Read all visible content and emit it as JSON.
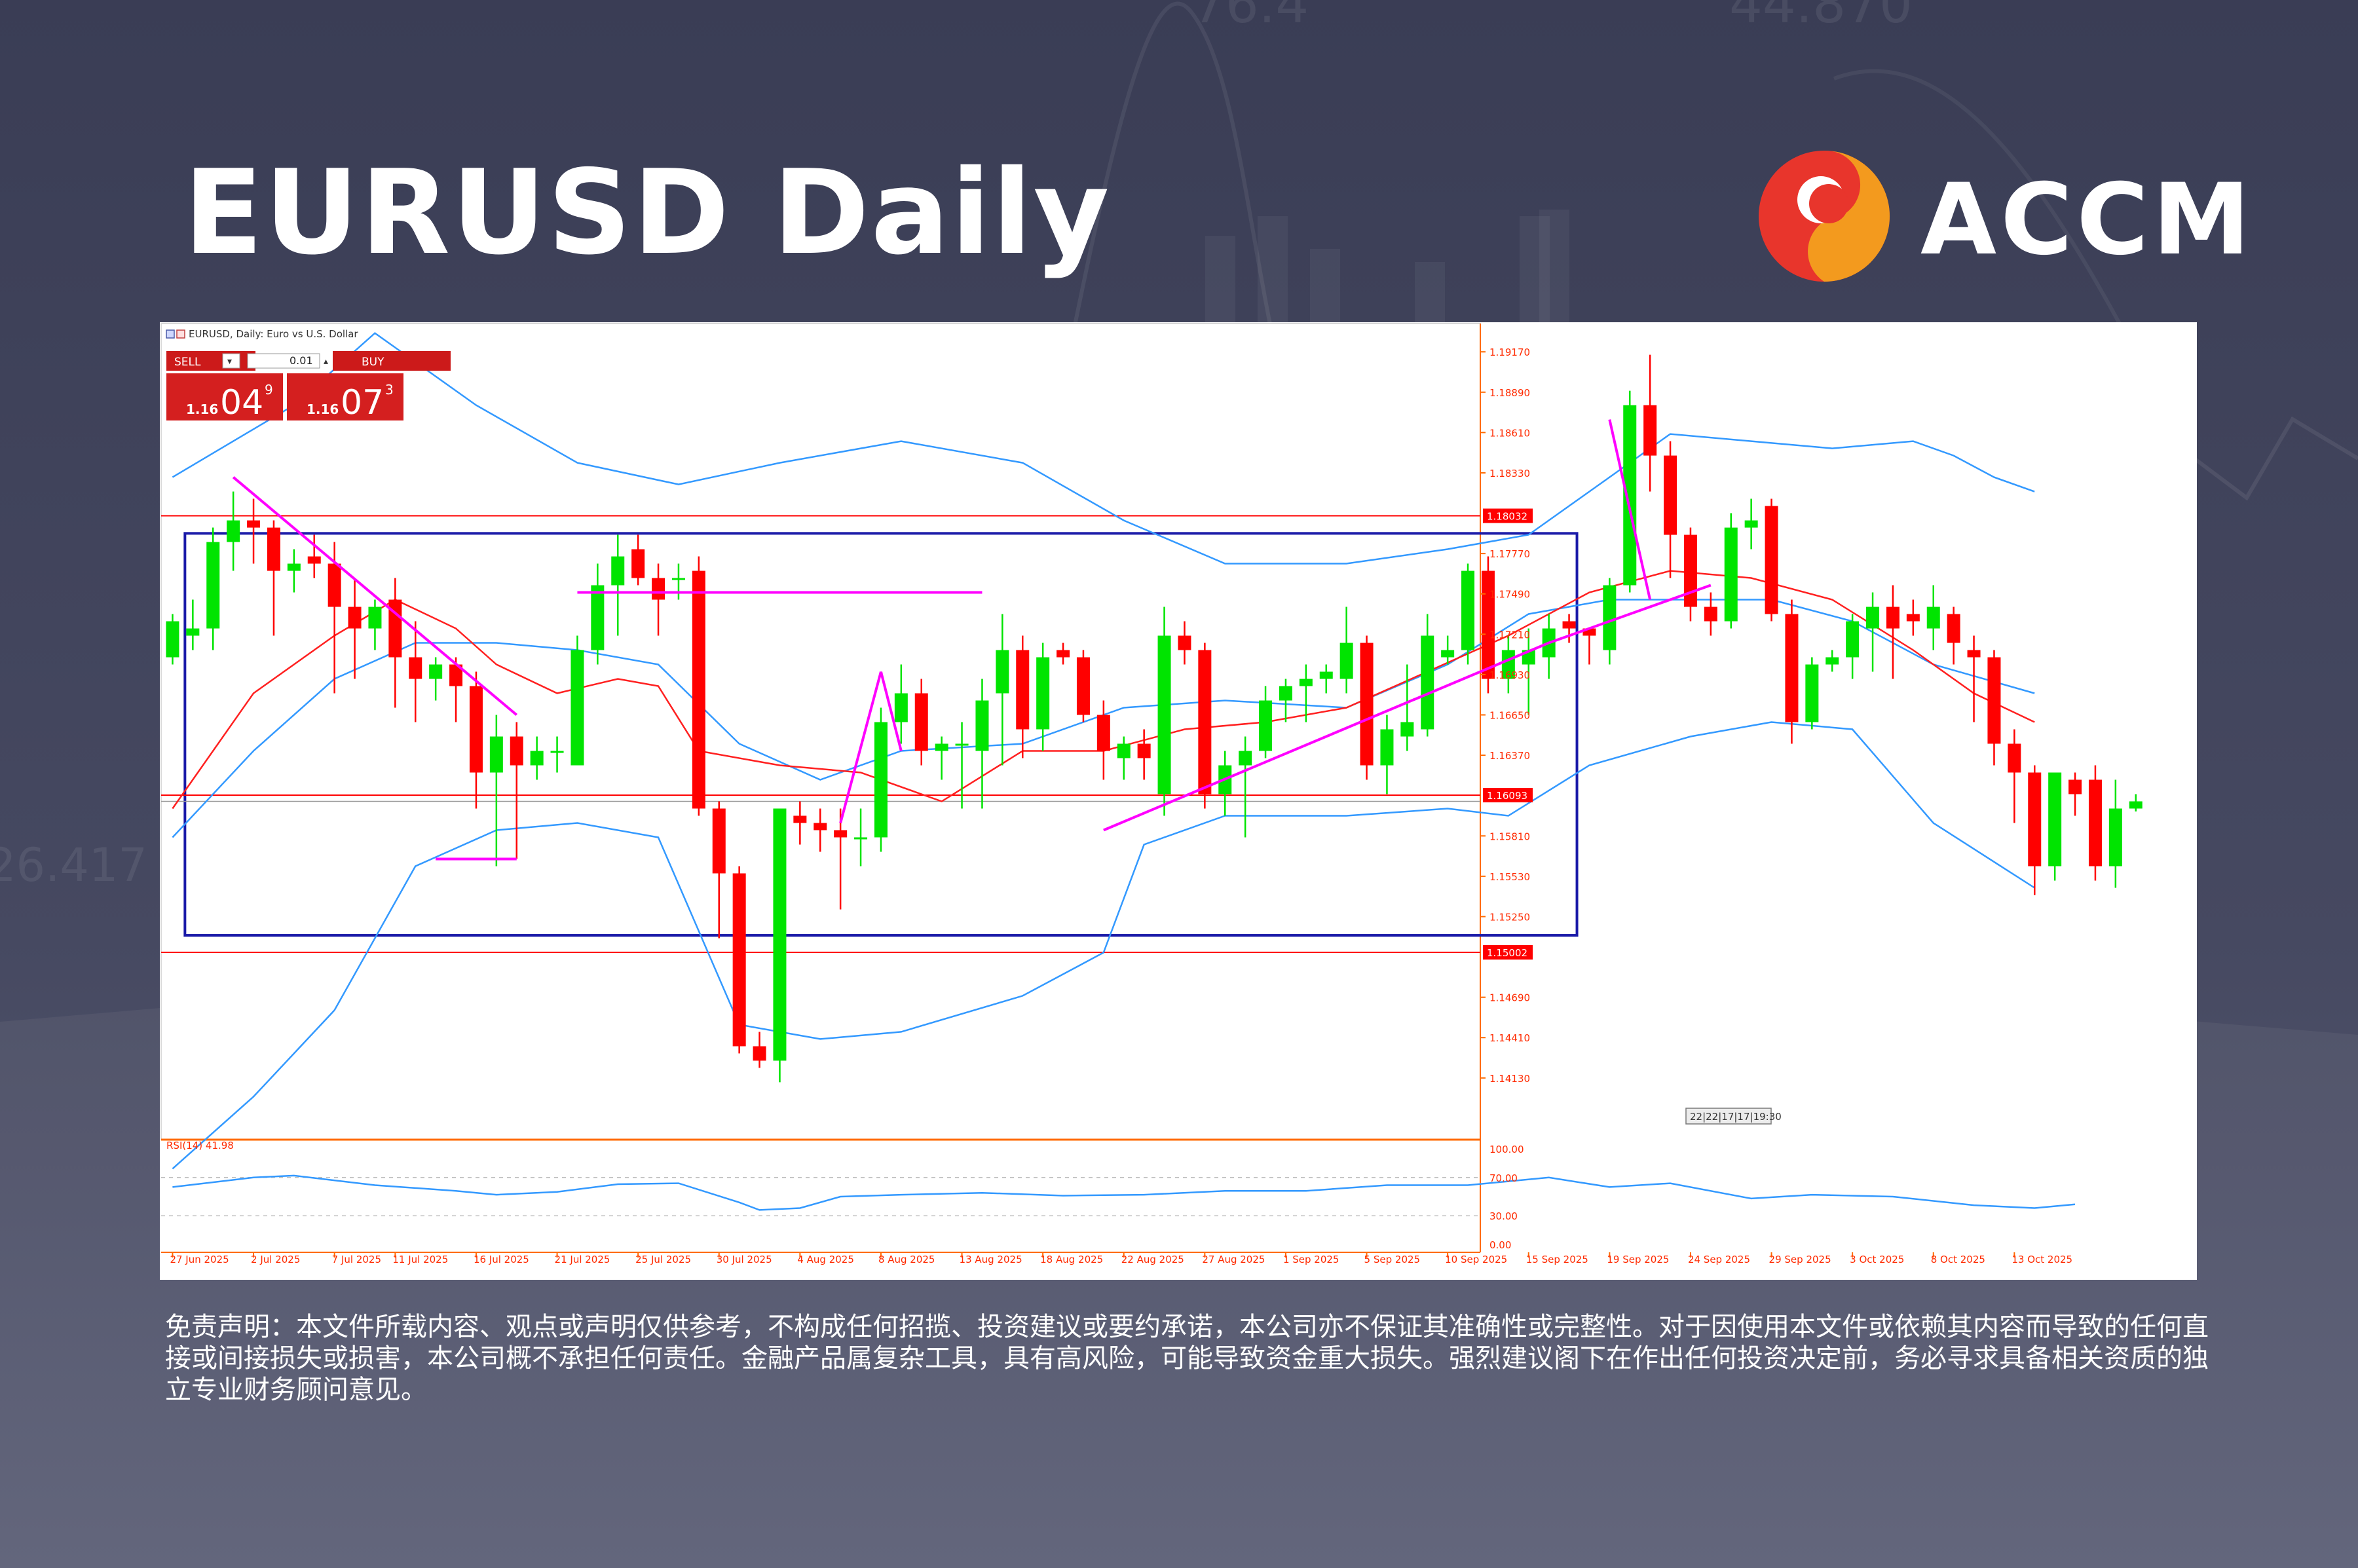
{
  "page": {
    "title": "EURUSD Daily",
    "logo_text": "ACCM",
    "disclaimer": "免责声明：本文件所载内容、观点或声明仅供参考，不构成任何招揽、投资建议或要约承诺，本公司亦不保证其准确性或完整性。对于因使用本文件或依赖其内容而导致的任何直接或间接损失或损害，本公司概不承担任何责任。金融产品属复杂工具，具有高风险，可能导致资金重大损失。强烈建议阁下在作出任何投资决定前，务必寻求具备相关资质的独立专业财务顾问意见。",
    "background_numbers": [
      "76.4",
      "44.870",
      "26.417"
    ],
    "colors": {
      "background": "#3f4259",
      "bull": "#00e400",
      "bear": "#ff0000",
      "bollinger": "#3399ff",
      "sma": "#ff2020",
      "trendline": "#ff00ff",
      "box": "#1a1aa8",
      "hline": "#ff0000",
      "logo_orange": "#f39a1e",
      "logo_red": "#e8352c"
    },
    "icons": [
      "accm-logo-icon",
      "chart-menu-icon"
    ]
  },
  "trade_panel": {
    "chart_label": "EURUSD, Daily:  Euro vs U.S. Dollar",
    "sell_label": "SELL",
    "buy_label": "BUY",
    "lot": "0.01",
    "sell_price": {
      "prefix": "1.16",
      "big": "04",
      "sup": "9"
    },
    "buy_price": {
      "prefix": "1.16",
      "big": "07",
      "sup": "3"
    }
  },
  "chart_data": {
    "type": "candlestick",
    "title": "EURUSD, Daily:  Euro vs U.S. Dollar",
    "ylim": [
      1.1372,
      1.1933
    ],
    "y_ticks": [
      "1.19170",
      "1.18890",
      "1.18610",
      "1.18330",
      "1.17770",
      "1.17490",
      "1.17210",
      "1.16930",
      "1.16650",
      "1.16370",
      "1.15810",
      "1.15530",
      "1.15250",
      "1.14690",
      "1.14410",
      "1.14130"
    ],
    "x_ticks": [
      "27 Jun 2025",
      "2 Jul 2025",
      "7 Jul 2025",
      "11 Jul 2025",
      "16 Jul 2025",
      "21 Jul 2025",
      "25 Jul 2025",
      "30 Jul 2025",
      "4 Aug 2025",
      "8 Aug 2025",
      "13 Aug 2025",
      "18 Aug 2025",
      "22 Aug 2025",
      "27 Aug 2025",
      "1 Sep 2025",
      "5 Sep 2025",
      "10 Sep 2025",
      "15 Sep 2025",
      "19 Sep 2025",
      "24 Sep 2025",
      "29 Sep 2025",
      "3 Oct 2025",
      "8 Oct 2025",
      "13 Oct 2025"
    ],
    "x_tick_positions": [
      0,
      4,
      8,
      11,
      15,
      19,
      23,
      27,
      31,
      35,
      39,
      43,
      47,
      51,
      55,
      59,
      63,
      67,
      71,
      75,
      79,
      83,
      87,
      91
    ],
    "price_labels": [
      {
        "text": "1.18032",
        "value": 1.18032
      },
      {
        "text": "1.16093",
        "value": 1.16093
      },
      {
        "text": "1.15002",
        "value": 1.15002
      }
    ],
    "current_bid": 1.1605,
    "horizontal_lines": [
      1.18032,
      1.16093,
      1.15002
    ],
    "time_label": "22|22|17|17|19:30",
    "candles": [
      [
        1.1705,
        1.1735,
        1.17,
        1.173
      ],
      [
        1.172,
        1.1745,
        1.171,
        1.1725
      ],
      [
        1.1725,
        1.1795,
        1.171,
        1.1785
      ],
      [
        1.1785,
        1.182,
        1.1765,
        1.18
      ],
      [
        1.18,
        1.1815,
        1.177,
        1.1795
      ],
      [
        1.1795,
        1.18,
        1.172,
        1.1765
      ],
      [
        1.1765,
        1.178,
        1.175,
        1.177
      ],
      [
        1.1775,
        1.179,
        1.176,
        1.177
      ],
      [
        1.177,
        1.1785,
        1.168,
        1.174
      ],
      [
        1.174,
        1.176,
        1.169,
        1.1725
      ],
      [
        1.1725,
        1.1745,
        1.171,
        1.174
      ],
      [
        1.1745,
        1.176,
        1.167,
        1.1705
      ],
      [
        1.1705,
        1.173,
        1.166,
        1.169
      ],
      [
        1.169,
        1.1705,
        1.1675,
        1.17
      ],
      [
        1.17,
        1.1705,
        1.166,
        1.1685
      ],
      [
        1.1685,
        1.1695,
        1.16,
        1.1625
      ],
      [
        1.1625,
        1.1665,
        1.156,
        1.165
      ],
      [
        1.165,
        1.166,
        1.1565,
        1.163
      ],
      [
        1.163,
        1.165,
        1.162,
        1.164
      ],
      [
        1.164,
        1.165,
        1.1625,
        1.164
      ],
      [
        1.163,
        1.172,
        1.163,
        1.171
      ],
      [
        1.171,
        1.177,
        1.17,
        1.1755
      ],
      [
        1.1755,
        1.179,
        1.172,
        1.1775
      ],
      [
        1.178,
        1.179,
        1.1755,
        1.176
      ],
      [
        1.176,
        1.177,
        1.172,
        1.1745
      ],
      [
        1.176,
        1.177,
        1.1745,
        1.176
      ],
      [
        1.1765,
        1.1775,
        1.1595,
        1.16
      ],
      [
        1.16,
        1.1605,
        1.151,
        1.1555
      ],
      [
        1.1555,
        1.156,
        1.143,
        1.1435
      ],
      [
        1.1435,
        1.1445,
        1.142,
        1.1425
      ],
      [
        1.1425,
        1.16,
        1.141,
        1.16
      ],
      [
        1.1595,
        1.1605,
        1.1575,
        1.159
      ],
      [
        1.159,
        1.16,
        1.157,
        1.1585
      ],
      [
        1.1585,
        1.16,
        1.153,
        1.158
      ],
      [
        1.158,
        1.16,
        1.156,
        1.158
      ],
      [
        1.158,
        1.167,
        1.157,
        1.166
      ],
      [
        1.166,
        1.17,
        1.1645,
        1.168
      ],
      [
        1.168,
        1.169,
        1.163,
        1.164
      ],
      [
        1.164,
        1.165,
        1.162,
        1.1645
      ],
      [
        1.1645,
        1.166,
        1.16,
        1.1645
      ],
      [
        1.164,
        1.169,
        1.16,
        1.1675
      ],
      [
        1.168,
        1.1735,
        1.163,
        1.171
      ],
      [
        1.171,
        1.172,
        1.1635,
        1.1655
      ],
      [
        1.1655,
        1.1715,
        1.164,
        1.1705
      ],
      [
        1.171,
        1.1715,
        1.17,
        1.1705
      ],
      [
        1.1705,
        1.171,
        1.166,
        1.1665
      ],
      [
        1.1665,
        1.1675,
        1.162,
        1.164
      ],
      [
        1.1635,
        1.165,
        1.162,
        1.1645
      ],
      [
        1.1645,
        1.1655,
        1.162,
        1.1635
      ],
      [
        1.161,
        1.174,
        1.1595,
        1.172
      ],
      [
        1.172,
        1.173,
        1.17,
        1.171
      ],
      [
        1.171,
        1.1715,
        1.16,
        1.161
      ],
      [
        1.161,
        1.164,
        1.1595,
        1.163
      ],
      [
        1.163,
        1.165,
        1.158,
        1.164
      ],
      [
        1.164,
        1.1685,
        1.1635,
        1.1675
      ],
      [
        1.1675,
        1.169,
        1.166,
        1.1685
      ],
      [
        1.1685,
        1.17,
        1.166,
        1.169
      ],
      [
        1.169,
        1.17,
        1.168,
        1.1695
      ],
      [
        1.169,
        1.174,
        1.168,
        1.1715
      ],
      [
        1.1715,
        1.172,
        1.162,
        1.163
      ],
      [
        1.163,
        1.1665,
        1.161,
        1.1655
      ],
      [
        1.165,
        1.17,
        1.164,
        1.166
      ],
      [
        1.1655,
        1.1735,
        1.165,
        1.172
      ],
      [
        1.1705,
        1.172,
        1.17,
        1.171
      ],
      [
        1.171,
        1.177,
        1.17,
        1.1765
      ],
      [
        1.1765,
        1.1775,
        1.168,
        1.169
      ],
      [
        1.169,
        1.172,
        1.168,
        1.171
      ],
      [
        1.17,
        1.1725,
        1.1665,
        1.171
      ],
      [
        1.1705,
        1.1735,
        1.169,
        1.1725
      ],
      [
        1.173,
        1.1735,
        1.1715,
        1.1725
      ],
      [
        1.1725,
        1.172,
        1.17,
        1.172
      ],
      [
        1.171,
        1.176,
        1.17,
        1.1755
      ],
      [
        1.1755,
        1.189,
        1.175,
        1.188
      ],
      [
        1.188,
        1.1915,
        1.182,
        1.1845
      ],
      [
        1.1845,
        1.1855,
        1.176,
        1.179
      ],
      [
        1.179,
        1.1795,
        1.173,
        1.174
      ],
      [
        1.174,
        1.175,
        1.172,
        1.173
      ],
      [
        1.173,
        1.1805,
        1.1725,
        1.1795
      ],
      [
        1.1795,
        1.1815,
        1.178,
        1.18
      ],
      [
        1.181,
        1.1815,
        1.173,
        1.1735
      ],
      [
        1.1735,
        1.1745,
        1.1645,
        1.166
      ],
      [
        1.166,
        1.1705,
        1.1655,
        1.17
      ],
      [
        1.17,
        1.171,
        1.1695,
        1.1705
      ],
      [
        1.1705,
        1.1735,
        1.169,
        1.173
      ],
      [
        1.1725,
        1.175,
        1.1695,
        1.174
      ],
      [
        1.174,
        1.1755,
        1.169,
        1.1725
      ],
      [
        1.1735,
        1.1745,
        1.172,
        1.173
      ],
      [
        1.1725,
        1.1755,
        1.171,
        1.174
      ],
      [
        1.1735,
        1.174,
        1.17,
        1.1715
      ],
      [
        1.171,
        1.172,
        1.166,
        1.1705
      ],
      [
        1.1705,
        1.171,
        1.163,
        1.1645
      ],
      [
        1.1645,
        1.1655,
        1.159,
        1.1625
      ],
      [
        1.1625,
        1.163,
        1.154,
        1.156
      ],
      [
        1.156,
        1.1625,
        1.155,
        1.1625
      ],
      [
        1.162,
        1.1625,
        1.1595,
        1.161
      ],
      [
        1.162,
        1.163,
        1.155,
        1.156
      ],
      [
        1.156,
        1.162,
        1.1545,
        1.16
      ],
      [
        1.16,
        1.161,
        1.1598,
        1.1605
      ]
    ],
    "bollinger_upper": [
      [
        0,
        1.183
      ],
      [
        6,
        1.188
      ],
      [
        10,
        1.193
      ],
      [
        15,
        1.188
      ],
      [
        20,
        1.184
      ],
      [
        25,
        1.1825
      ],
      [
        30,
        1.184
      ],
      [
        36,
        1.1855
      ],
      [
        42,
        1.184
      ],
      [
        47,
        1.18
      ],
      [
        52,
        1.177
      ],
      [
        58,
        1.177
      ],
      [
        63,
        1.178
      ],
      [
        67,
        1.179
      ],
      [
        71,
        1.183
      ],
      [
        74,
        1.186
      ],
      [
        78,
        1.1855
      ],
      [
        82,
        1.185
      ],
      [
        86,
        1.1855
      ],
      [
        88,
        1.1845
      ],
      [
        90,
        1.183
      ],
      [
        92,
        1.182
      ]
    ],
    "bollinger_middle": [
      [
        0,
        1.158
      ],
      [
        4,
        1.164
      ],
      [
        8,
        1.169
      ],
      [
        12,
        1.1715
      ],
      [
        16,
        1.1715
      ],
      [
        20,
        1.171
      ],
      [
        24,
        1.17
      ],
      [
        28,
        1.1645
      ],
      [
        32,
        1.162
      ],
      [
        36,
        1.164
      ],
      [
        42,
        1.1645
      ],
      [
        47,
        1.167
      ],
      [
        52,
        1.1675
      ],
      [
        58,
        1.167
      ],
      [
        63,
        1.17
      ],
      [
        67,
        1.1735
      ],
      [
        71,
        1.1745
      ],
      [
        75,
        1.1745
      ],
      [
        79,
        1.1745
      ],
      [
        83,
        1.173
      ],
      [
        87,
        1.17
      ],
      [
        92,
        1.168
      ]
    ],
    "bollinger_lower": [
      [
        0,
        1.135
      ],
      [
        4,
        1.14
      ],
      [
        8,
        1.146
      ],
      [
        12,
        1.156
      ],
      [
        16,
        1.1585
      ],
      [
        20,
        1.159
      ],
      [
        24,
        1.158
      ],
      [
        28,
        1.145
      ],
      [
        32,
        1.144
      ],
      [
        36,
        1.1445
      ],
      [
        42,
        1.147
      ],
      [
        46,
        1.15
      ],
      [
        48,
        1.1575
      ],
      [
        52,
        1.1595
      ],
      [
        58,
        1.1595
      ],
      [
        63,
        1.16
      ],
      [
        66,
        1.1595
      ],
      [
        70,
        1.163
      ],
      [
        75,
        1.165
      ],
      [
        79,
        1.166
      ],
      [
        83,
        1.1655
      ],
      [
        87,
        1.159
      ],
      [
        92,
        1.1545
      ]
    ],
    "sma": [
      [
        0,
        1.16
      ],
      [
        4,
        1.168
      ],
      [
        8,
        1.172
      ],
      [
        11,
        1.1745
      ],
      [
        14,
        1.1725
      ],
      [
        16,
        1.17
      ],
      [
        19,
        1.168
      ],
      [
        22,
        1.169
      ],
      [
        24,
        1.1685
      ],
      [
        26,
        1.164
      ],
      [
        30,
        1.163
      ],
      [
        34,
        1.1625
      ],
      [
        38,
        1.1605
      ],
      [
        42,
        1.164
      ],
      [
        46,
        1.164
      ],
      [
        50,
        1.1655
      ],
      [
        54,
        1.166
      ],
      [
        58,
        1.167
      ],
      [
        62,
        1.1695
      ],
      [
        66,
        1.172
      ],
      [
        70,
        1.175
      ],
      [
        74,
        1.1765
      ],
      [
        78,
        1.176
      ],
      [
        82,
        1.1745
      ],
      [
        86,
        1.171
      ],
      [
        89,
        1.168
      ],
      [
        92,
        1.166
      ]
    ],
    "trendlines": [
      [
        [
          3,
          1.183
        ],
        [
          17,
          1.1665
        ]
      ],
      [
        [
          20,
          1.175
        ],
        [
          40,
          1.175
        ]
      ],
      [
        [
          13,
          1.1565
        ],
        [
          17,
          1.1565
        ]
      ],
      [
        [
          33,
          1.159
        ],
        [
          35,
          1.1695
        ]
      ],
      [
        [
          35,
          1.1695
        ],
        [
          36,
          1.164
        ]
      ],
      [
        [
          46,
          1.1585
        ],
        [
          68,
          1.1715
        ]
      ],
      [
        [
          68,
          1.1715
        ],
        [
          76,
          1.1755
        ]
      ],
      [
        [
          71,
          1.187
        ],
        [
          73,
          1.1745
        ]
      ]
    ],
    "range_box": {
      "start": 1,
      "end": 69,
      "high": 1.1791,
      "low": 1.1512
    },
    "rsi": {
      "label": "RSI(14) 41.98",
      "value": 41.98,
      "levels": [
        70,
        30
      ],
      "y_ticks": [
        "100.00",
        "70.00",
        "30.00",
        "0.00"
      ],
      "points": [
        [
          0,
          60
        ],
        [
          4,
          70
        ],
        [
          6,
          72
        ],
        [
          10,
          62
        ],
        [
          14,
          56
        ],
        [
          16,
          52
        ],
        [
          19,
          55
        ],
        [
          22,
          63
        ],
        [
          25,
          64
        ],
        [
          28,
          44
        ],
        [
          29,
          36
        ],
        [
          31,
          38
        ],
        [
          33,
          50
        ],
        [
          36,
          52
        ],
        [
          40,
          54
        ],
        [
          44,
          51
        ],
        [
          48,
          52
        ],
        [
          52,
          56
        ],
        [
          56,
          56
        ],
        [
          60,
          62
        ],
        [
          64,
          62
        ],
        [
          68,
          70
        ],
        [
          71,
          60
        ],
        [
          74,
          64
        ],
        [
          78,
          48
        ],
        [
          81,
          52
        ],
        [
          85,
          50
        ],
        [
          89,
          41
        ],
        [
          92,
          38
        ],
        [
          94,
          42
        ]
      ]
    }
  }
}
